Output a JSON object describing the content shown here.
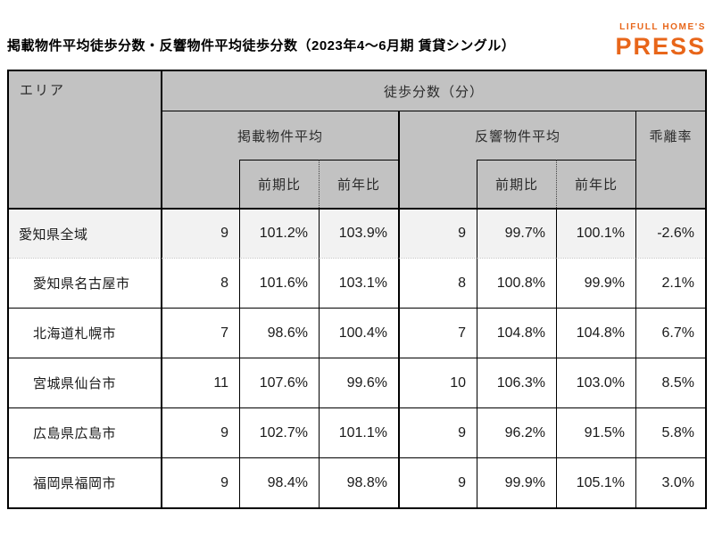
{
  "title": "掲載物件平均徒歩分数・反響物件平均徒歩分数（2023年4～6月期 賃貸シングル）",
  "logo": {
    "brand": "LIFULL HOME'S",
    "product": "PRESS",
    "color": "#E8661A"
  },
  "colors": {
    "accent_orange": "#E8661A",
    "header_bg": "#C2C2C2",
    "highlight_row_bg": "#F2F2F2",
    "border": "#000000"
  },
  "table": {
    "area_header": "エリア",
    "group_header": "徒歩分数（分）",
    "listed_header": "掲載物件平均",
    "response_header": "反響物件平均",
    "divergence_header": "乖離率",
    "qoq_header": "前期比",
    "yoy_header": "前年比",
    "rows": [
      {
        "area": "愛知県全域",
        "listed_avg": "9",
        "listed_qoq": "101.2%",
        "listed_yoy": "103.9%",
        "response_avg": "9",
        "response_qoq": "99.7%",
        "response_yoy": "100.1%",
        "divergence": "-2.6%"
      },
      {
        "area": "愛知県名古屋市",
        "listed_avg": "8",
        "listed_qoq": "101.6%",
        "listed_yoy": "103.1%",
        "response_avg": "8",
        "response_qoq": "100.8%",
        "response_yoy": "99.9%",
        "divergence": "2.1%"
      },
      {
        "area": "北海道札幌市",
        "listed_avg": "7",
        "listed_qoq": "98.6%",
        "listed_yoy": "100.4%",
        "response_avg": "7",
        "response_qoq": "104.8%",
        "response_yoy": "104.8%",
        "divergence": "6.7%"
      },
      {
        "area": "宮城県仙台市",
        "listed_avg": "11",
        "listed_qoq": "107.6%",
        "listed_yoy": "99.6%",
        "response_avg": "10",
        "response_qoq": "106.3%",
        "response_yoy": "103.0%",
        "divergence": "8.5%"
      },
      {
        "area": "広島県広島市",
        "listed_avg": "9",
        "listed_qoq": "102.7%",
        "listed_yoy": "101.1%",
        "response_avg": "9",
        "response_qoq": "96.2%",
        "response_yoy": "91.5%",
        "divergence": "5.8%"
      },
      {
        "area": "福岡県福岡市",
        "listed_avg": "9",
        "listed_qoq": "98.4%",
        "listed_yoy": "98.8%",
        "response_avg": "9",
        "response_qoq": "99.9%",
        "response_yoy": "105.1%",
        "divergence": "3.0%"
      }
    ]
  },
  "chart_data": {
    "type": "table",
    "title": "掲載物件平均徒歩分数・反響物件平均徒歩分数（2023年4～6月期 賃貸シングル）",
    "column_group": "徒歩分数（分）",
    "columns": [
      "エリア",
      "掲載物件平均",
      "掲載物件平均 前期比",
      "掲載物件平均 前年比",
      "反響物件平均",
      "反響物件平均 前期比",
      "反響物件平均 前年比",
      "乖離率"
    ],
    "rows": [
      [
        "愛知県全域",
        9,
        "101.2%",
        "103.9%",
        9,
        "99.7%",
        "100.1%",
        "-2.6%"
      ],
      [
        "愛知県名古屋市",
        8,
        "101.6%",
        "103.1%",
        8,
        "100.8%",
        "99.9%",
        "2.1%"
      ],
      [
        "北海道札幌市",
        7,
        "98.6%",
        "100.4%",
        7,
        "104.8%",
        "104.8%",
        "6.7%"
      ],
      [
        "宮城県仙台市",
        11,
        "107.6%",
        "99.6%",
        10,
        "106.3%",
        "103.0%",
        "8.5%"
      ],
      [
        "広島県広島市",
        9,
        "102.7%",
        "101.1%",
        9,
        "96.2%",
        "91.5%",
        "5.8%"
      ],
      [
        "福岡県福岡市",
        9,
        "98.4%",
        "98.8%",
        9,
        "99.9%",
        "105.1%",
        "3.0%"
      ]
    ]
  }
}
